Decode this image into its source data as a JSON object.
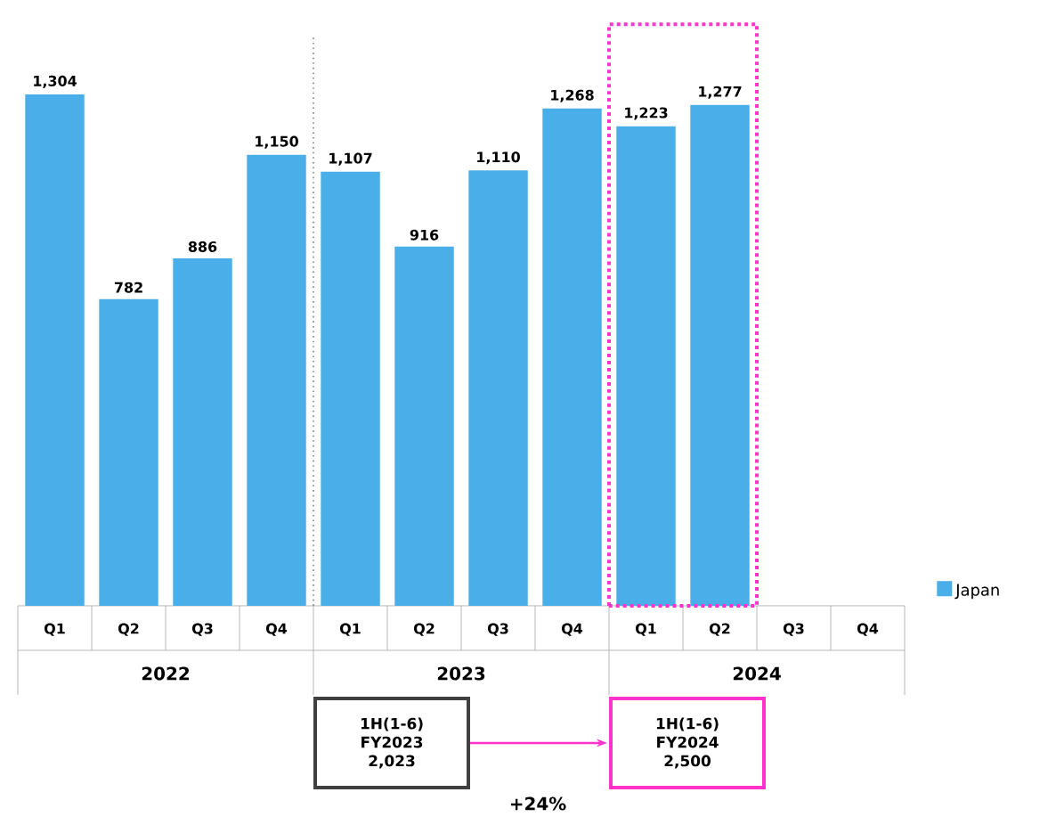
{
  "chart_data": {
    "type": "bar",
    "categories": [
      "Q1",
      "Q2",
      "Q3",
      "Q4",
      "Q1",
      "Q2",
      "Q3",
      "Q4",
      "Q1",
      "Q2",
      "Q3",
      "Q4"
    ],
    "series": [
      {
        "name": "Japan",
        "color": "#4aaee8",
        "values": [
          1304,
          782,
          886,
          1150,
          1107,
          916,
          1110,
          1268,
          1223,
          1277,
          null,
          null
        ],
        "value_labels": [
          "1,304",
          "782",
          "886",
          "1,150",
          "1,107",
          "916",
          "1,110",
          "1,268",
          "1,223",
          "1,277",
          null,
          null
        ]
      }
    ],
    "legend": "right",
    "annotations": [
      "2022",
      "2023",
      "2024",
      "1H(1-6)",
      "FY2023",
      "2,023",
      "1H(1-6)",
      "FY2024",
      "2,500",
      "+24%"
    ]
  }
}
